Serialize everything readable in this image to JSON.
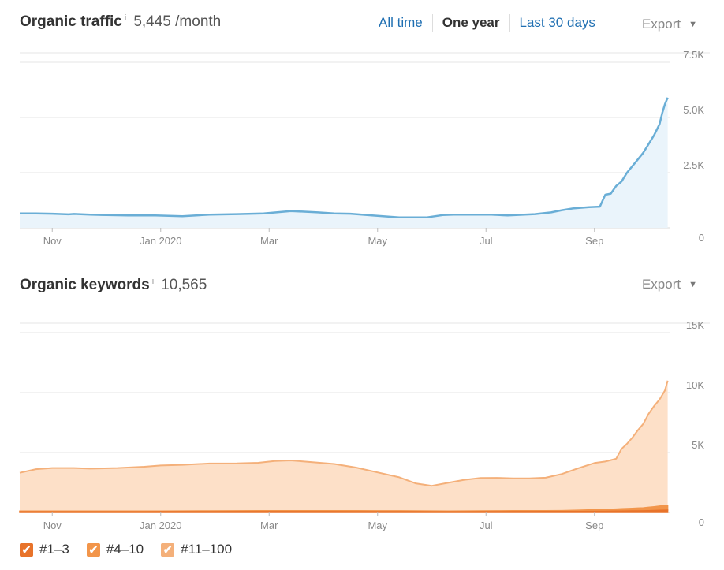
{
  "traffic": {
    "title": "Organic traffic",
    "info": "i",
    "value": "5,445 /month",
    "export_label": "Export",
    "range_tabs": [
      {
        "label": "All time",
        "active": false
      },
      {
        "label": "One year",
        "active": true
      },
      {
        "label": "Last 30 days",
        "active": false
      }
    ]
  },
  "keywords": {
    "title": "Organic keywords",
    "info": "i",
    "value": "10,565",
    "export_label": "Export",
    "legend": [
      {
        "label": "#1–3",
        "checked": true
      },
      {
        "label": "#4–10",
        "checked": true
      },
      {
        "label": "#11–100",
        "checked": true
      }
    ]
  },
  "colors": {
    "traffic_line": "#6aaed6",
    "traffic_fill": "#eaf4fb",
    "kw_top3": "#e8732a",
    "kw_4_10": "#f2954a",
    "kw_11_100_line": "#f4b07a",
    "kw_11_100_fill": "#fde0c8",
    "gridline": "#e6e6e6",
    "axis_text": "#888888"
  },
  "chart_data": [
    {
      "type": "area",
      "title": "Organic traffic",
      "x_tick_labels": [
        "Nov",
        "Jan 2020",
        "Mar",
        "May",
        "Jul",
        "Sep"
      ],
      "x_tick_positions": [
        0.6,
        2.6,
        4.6,
        6.6,
        8.6,
        10.6
      ],
      "x_range": [
        0,
        12
      ],
      "y_tick_labels": [
        "0",
        "2.5K",
        "5.0K",
        "7.5K"
      ],
      "y_tick_values": [
        0,
        2500,
        5000,
        7500
      ],
      "ylim": [
        0,
        7500
      ],
      "grid": true,
      "series": [
        {
          "name": "",
          "x": [
            0,
            0.3,
            0.6,
            0.9,
            1.0,
            1.3,
            1.6,
            2.0,
            2.5,
            3.0,
            3.5,
            4.0,
            4.5,
            5.0,
            5.5,
            5.8,
            6.1,
            6.5,
            7.0,
            7.5,
            7.8,
            8.0,
            8.3,
            8.7,
            9.0,
            9.5,
            9.8,
            10.0,
            10.2,
            10.5,
            10.7,
            10.8,
            10.9,
            11.0,
            11.1,
            11.2,
            11.3,
            11.4,
            11.5,
            11.6,
            11.7,
            11.8,
            11.85,
            11.9,
            11.95
          ],
          "y": [
            650,
            650,
            640,
            610,
            630,
            600,
            580,
            560,
            560,
            530,
            600,
            620,
            650,
            760,
            700,
            650,
            640,
            560,
            470,
            470,
            580,
            600,
            600,
            600,
            560,
            620,
            700,
            800,
            880,
            940,
            960,
            1500,
            1550,
            1900,
            2100,
            2500,
            2800,
            3100,
            3400,
            3800,
            4200,
            4700,
            5200,
            5600,
            5900
          ]
        }
      ]
    },
    {
      "type": "area",
      "title": "Organic keywords",
      "x_tick_labels": [
        "Nov",
        "Jan 2020",
        "Mar",
        "May",
        "Jul",
        "Sep"
      ],
      "x_tick_positions": [
        0.6,
        2.6,
        4.6,
        6.6,
        8.6,
        10.6
      ],
      "x_range": [
        0,
        12
      ],
      "y_tick_labels": [
        "0",
        "5K",
        "10K",
        "15K"
      ],
      "y_tick_values": [
        0,
        5000,
        10000,
        15000
      ],
      "ylim": [
        0,
        15000
      ],
      "grid": true,
      "stacked": true,
      "series": [
        {
          "name": "#1–3",
          "x": [
            0,
            2,
            4,
            6,
            8,
            10,
            10.8,
            11.5,
            11.95
          ],
          "y": [
            60,
            60,
            70,
            70,
            60,
            80,
            100,
            140,
            200
          ]
        },
        {
          "name": "#4–10",
          "x": [
            0,
            2,
            4,
            6,
            8,
            10,
            10.8,
            11.5,
            11.95
          ],
          "y": [
            50,
            50,
            70,
            80,
            60,
            80,
            150,
            250,
            400
          ]
        },
        {
          "name": "#11–100",
          "x": [
            0,
            0.3,
            0.6,
            1.0,
            1.3,
            1.8,
            2.3,
            2.6,
            3.0,
            3.5,
            4.0,
            4.4,
            4.7,
            5.0,
            5.4,
            5.8,
            6.2,
            6.6,
            7.0,
            7.3,
            7.6,
            7.9,
            8.2,
            8.5,
            8.8,
            9.1,
            9.4,
            9.7,
            10.0,
            10.3,
            10.6,
            10.8,
            10.9,
            11.0,
            11.1,
            11.2,
            11.3,
            11.4,
            11.5,
            11.6,
            11.7,
            11.8,
            11.9,
            11.95
          ],
          "y": [
            3200,
            3500,
            3600,
            3600,
            3550,
            3600,
            3700,
            3800,
            3850,
            3950,
            3950,
            4000,
            4150,
            4200,
            4050,
            3900,
            3600,
            3200,
            2800,
            2300,
            2100,
            2350,
            2600,
            2750,
            2750,
            2700,
            2700,
            2750,
            3050,
            3500,
            3900,
            4000,
            4100,
            4200,
            5000,
            5400,
            5900,
            6500,
            7000,
            7800,
            8400,
            8900,
            9600,
            10400
          ]
        }
      ]
    }
  ]
}
